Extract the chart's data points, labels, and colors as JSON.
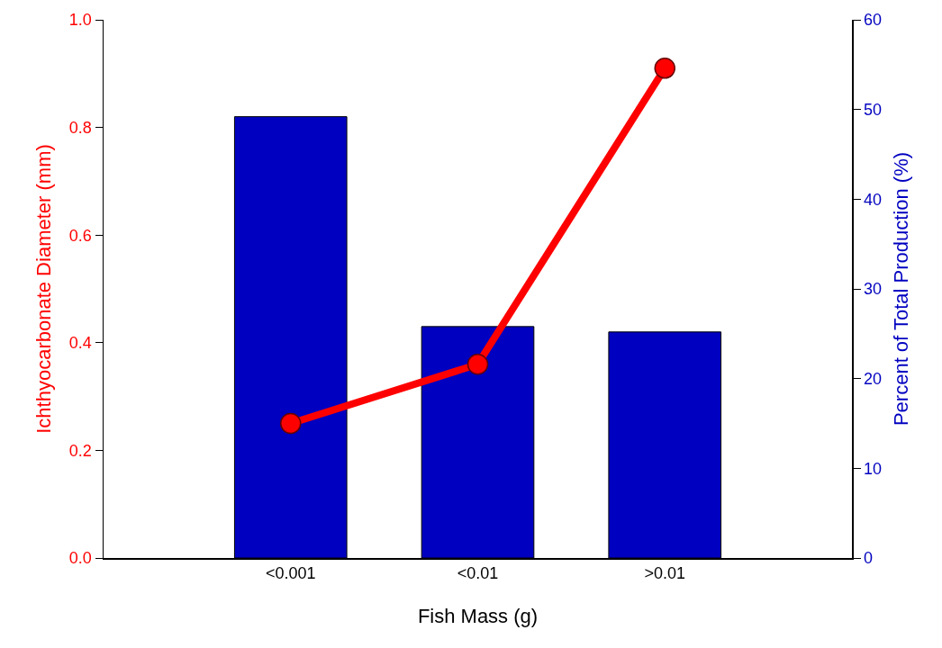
{
  "chart_data": {
    "type": "bar",
    "xlabel": "Fish Mass (g)",
    "ylabel": "Ichthyocarbonate Diameter (mm)",
    "y2label": "Percent of Total Production (%)",
    "categories": [
      "<0.001",
      "<0.01",
      ">0.01"
    ],
    "series": [
      {
        "axis": "y2",
        "color": "#0000c0",
        "values": [
          49.2,
          25.8,
          25.2
        ]
      },
      {
        "type": "line",
        "axis": "y",
        "color": "#ff0000",
        "marker": "circle",
        "values": [
          0.25,
          0.36,
          0.91
        ]
      }
    ],
    "ylim": [
      0,
      1
    ],
    "yticks": [
      {
        "value": 0,
        "label": "0.0"
      },
      {
        "value": 0.2,
        "label": "0.2"
      },
      {
        "value": 0.4,
        "label": "0.4"
      },
      {
        "value": 0.6,
        "label": "0.6"
      },
      {
        "value": 0.8,
        "label": "0.8"
      },
      {
        "value": 1,
        "label": "1.0"
      }
    ],
    "y2lim": [
      0,
      60
    ],
    "y2ticks": [
      0,
      10,
      20,
      30,
      40,
      50,
      60
    ],
    "grid": false
  }
}
